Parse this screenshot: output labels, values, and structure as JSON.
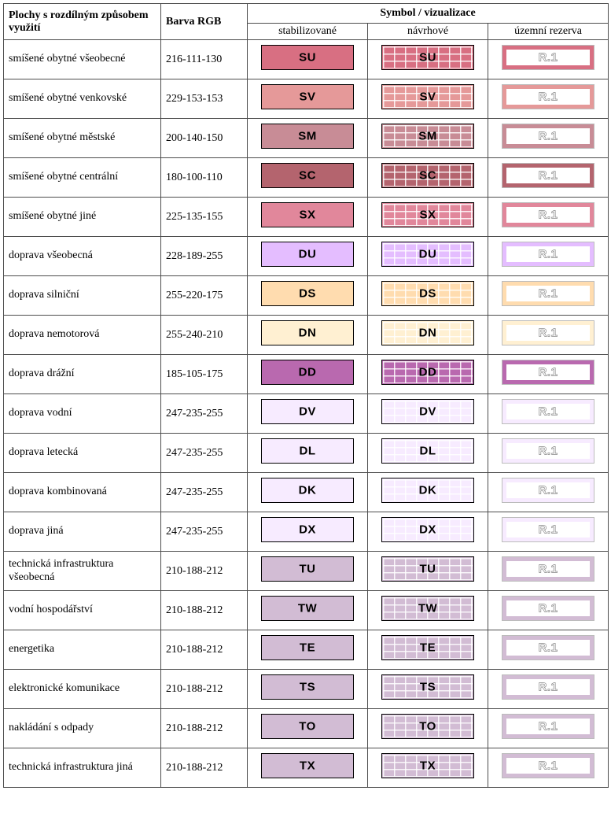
{
  "headers": {
    "col1": "Plochy s rozdílným způsobem využití",
    "col2": "Barva RGB",
    "col3": "Symbol / vizualizace",
    "sub1": "stabilizované",
    "sub2": "návrhové",
    "sub3": "územní rezerva"
  },
  "reserve_label": "R.1",
  "rows": [
    {
      "name": "smíšené obytné všeobecné",
      "rgb": "216-111-130",
      "color": "#d86f82",
      "code": "SU"
    },
    {
      "name": "smíšené obytné venkovské",
      "rgb": "229-153-153",
      "color": "#e59999",
      "code": "SV"
    },
    {
      "name": "smíšené obytné městské",
      "rgb": "200-140-150",
      "color": "#c88c96",
      "code": "SM"
    },
    {
      "name": "smíšené obytné centrální",
      "rgb": "180-100-110",
      "color": "#b4646e",
      "code": "SC"
    },
    {
      "name": "smíšené obytné jiné",
      "rgb": "225-135-155",
      "color": "#e1879b",
      "code": "SX"
    },
    {
      "name": "doprava všeobecná",
      "rgb": "228-189-255",
      "color": "#e4bdff",
      "code": "DU"
    },
    {
      "name": "doprava silniční",
      "rgb": "255-220-175",
      "color": "#ffdcaf",
      "code": "DS"
    },
    {
      "name": "doprava nemotorová",
      "rgb": "255-240-210",
      "color": "#fff0d2",
      "code": "DN"
    },
    {
      "name": "doprava drážní",
      "rgb": "185-105-175",
      "color": "#b969af",
      "code": "DD"
    },
    {
      "name": "doprava vodní",
      "rgb": "247-235-255",
      "color": "#f7ebff",
      "code": "DV"
    },
    {
      "name": "doprava letecká",
      "rgb": "247-235-255",
      "color": "#f7ebff",
      "code": "DL"
    },
    {
      "name": "doprava kombinovaná",
      "rgb": "247-235-255",
      "color": "#f7ebff",
      "code": "DK"
    },
    {
      "name": "doprava jiná",
      "rgb": "247-235-255",
      "color": "#f7ebff",
      "code": "DX"
    },
    {
      "name": "technická infrastruktura všeobecná",
      "rgb": "210-188-212",
      "color": "#d2bcd4",
      "code": "TU"
    },
    {
      "name": "vodní hospodářství",
      "rgb": "210-188-212",
      "color": "#d2bcd4",
      "code": "TW"
    },
    {
      "name": "energetika",
      "rgb": "210-188-212",
      "color": "#d2bcd4",
      "code": "TE"
    },
    {
      "name": "elektronické komunikace",
      "rgb": "210-188-212",
      "color": "#d2bcd4",
      "code": "TS"
    },
    {
      "name": "nakládání s odpady",
      "rgb": "210-188-212",
      "color": "#d2bcd4",
      "code": "TO"
    },
    {
      "name": "technická infrastruktura jiná",
      "rgb": "210-188-212",
      "color": "#d2bcd4",
      "code": "TX"
    }
  ]
}
